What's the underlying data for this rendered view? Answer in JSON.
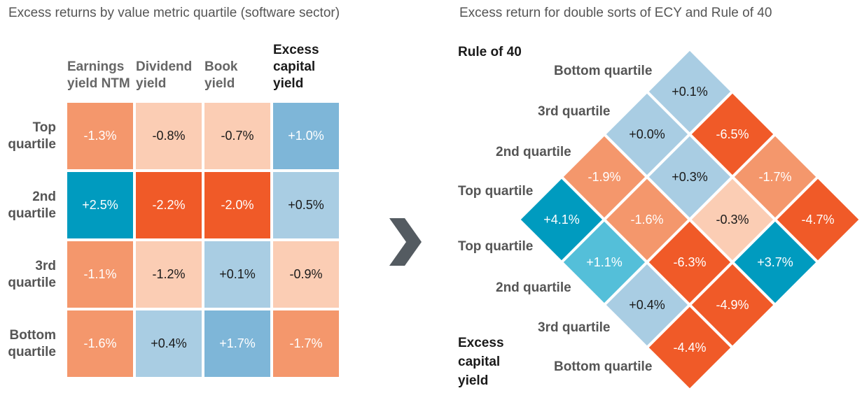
{
  "left_title": "Excess returns by value metric quartile (software sector)",
  "right_title": "Excess return for double sorts of ECY and Rule of 40",
  "colors": {
    "dark_orange": "#f05a28",
    "mid_orange": "#f4976c",
    "light_orange": "#fbcdb4",
    "teal": "#009bbf",
    "light_teal": "#54bfd9",
    "mid_blue": "#7eb6d8",
    "light_blue": "#a9cde3",
    "arrow": "#545b61"
  },
  "chart_data": [
    {
      "type": "heatmap",
      "title": "Excess returns by value metric quartile (software sector)",
      "columns": [
        "Earnings\nyield NTM",
        "Dividend\nyield",
        "Book\nyield",
        "Excess\ncapital\nyield"
      ],
      "rows": [
        "Top\nquartile",
        "2nd\nquartile",
        "3rd\nquartile",
        "Bottom\nquartile"
      ],
      "cells": [
        [
          {
            "label": "-1.3%",
            "value": -1.3,
            "color": "mid_orange"
          },
          {
            "label": "-0.8%",
            "value": -0.8,
            "color": "light_orange"
          },
          {
            "label": "-0.7%",
            "value": -0.7,
            "color": "light_orange"
          },
          {
            "label": "+1.0%",
            "value": 1.0,
            "color": "mid_blue"
          }
        ],
        [
          {
            "label": "+2.5%",
            "value": 2.5,
            "color": "teal"
          },
          {
            "label": "-2.2%",
            "value": -2.2,
            "color": "dark_orange"
          },
          {
            "label": "-2.0%",
            "value": -2.0,
            "color": "dark_orange"
          },
          {
            "label": "+0.5%",
            "value": 0.5,
            "color": "light_blue"
          }
        ],
        [
          {
            "label": "-1.1%",
            "value": -1.1,
            "color": "mid_orange"
          },
          {
            "label": "-1.2%",
            "value": -1.2,
            "color": "light_orange"
          },
          {
            "label": "+0.1%",
            "value": 0.1,
            "color": "light_blue"
          },
          {
            "label": "-0.9%",
            "value": -0.9,
            "color": "light_orange"
          }
        ],
        [
          {
            "label": "-1.6%",
            "value": -1.6,
            "color": "mid_orange"
          },
          {
            "label": "+0.4%",
            "value": 0.4,
            "color": "light_blue"
          },
          {
            "label": "+1.7%",
            "value": 1.7,
            "color": "mid_blue"
          },
          {
            "label": "-1.7%",
            "value": -1.7,
            "color": "mid_orange"
          }
        ]
      ]
    },
    {
      "type": "heatmap",
      "title": "Excess return for double sorts of ECY and Rule of 40",
      "rule_of_40_axis": {
        "label": "Rule of 40",
        "quartiles": [
          "Bottom quartile",
          "3rd quartile",
          "2nd quartile",
          "Top quartile"
        ]
      },
      "ecy_axis": {
        "label": "Excess\ncapital\nyield",
        "quartiles": [
          "Top quartile",
          "2nd quartile",
          "3rd quartile",
          "Bottom quartile"
        ]
      },
      "cells_by_rule40": [
        {
          "rule40": "Top quartile",
          "values": [
            {
              "label": "+4.1%",
              "value": 4.1,
              "color": "teal"
            },
            {
              "label": "-1.9%",
              "value": -1.9,
              "color": "mid_orange"
            },
            {
              "label": "+0.0%",
              "value": 0.0,
              "color": "light_blue"
            },
            {
              "label": "+0.1%",
              "value": 0.1,
              "color": "light_blue"
            }
          ]
        },
        {
          "rule40": "2nd quartile",
          "values": [
            {
              "label": "+1.1%",
              "value": 1.1,
              "color": "light_teal"
            },
            {
              "label": "-1.6%",
              "value": -1.6,
              "color": "mid_orange"
            },
            {
              "label": "+0.3%",
              "value": 0.3,
              "color": "light_blue"
            },
            {
              "label": "-6.5%",
              "value": -6.5,
              "color": "dark_orange"
            }
          ]
        },
        {
          "rule40": "3rd quartile",
          "values": [
            {
              "label": "+0.4%",
              "value": 0.4,
              "color": "light_blue"
            },
            {
              "label": "-6.3%",
              "value": -6.3,
              "color": "dark_orange"
            },
            {
              "label": "-0.3%",
              "value": -0.3,
              "color": "light_orange"
            },
            {
              "label": "-1.7%",
              "value": -1.7,
              "color": "mid_orange"
            }
          ]
        },
        {
          "rule40": "Bottom quartile",
          "values": [
            {
              "label": "-4.4%",
              "value": -4.4,
              "color": "dark_orange"
            },
            {
              "label": "-4.9%",
              "value": -4.9,
              "color": "dark_orange"
            },
            {
              "label": "+3.7%",
              "value": 3.7,
              "color": "teal"
            },
            {
              "label": "-4.7%",
              "value": -4.7,
              "color": "dark_orange"
            }
          ]
        }
      ]
    }
  ]
}
